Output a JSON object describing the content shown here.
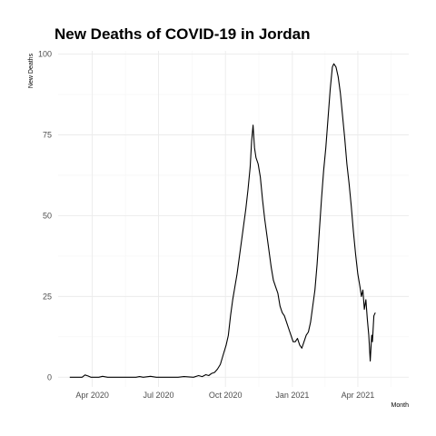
{
  "chart_data": {
    "type": "line",
    "title": "New Deaths of COVID-19 in Jordan",
    "xlabel": "Month",
    "ylabel": "New Deaths",
    "ylim": [
      -3,
      101
    ],
    "xlim": [
      "2020-02-14",
      "2021-06-10"
    ],
    "x_ticks": [
      "2020-04-01",
      "2020-07-01",
      "2020-10-01",
      "2021-01-01",
      "2021-04-01"
    ],
    "x_tick_labels": [
      "Apr 2020",
      "Jul 2020",
      "Oct 2020",
      "Jan 2021",
      "Apr 2021"
    ],
    "y_ticks": [
      0,
      25,
      50,
      75,
      100
    ],
    "y_tick_labels": [
      "0",
      "25",
      "50",
      "75",
      "100"
    ],
    "grid": true,
    "series": [
      {
        "color": "#000000",
        "points": [
          [
            "2020-03-01",
            0
          ],
          [
            "2020-03-10",
            0
          ],
          [
            "2020-03-18",
            0
          ],
          [
            "2020-03-22",
            0.7
          ],
          [
            "2020-03-26",
            0.4
          ],
          [
            "2020-03-30",
            0
          ],
          [
            "2020-04-10",
            0
          ],
          [
            "2020-04-15",
            0.3
          ],
          [
            "2020-04-22",
            0
          ],
          [
            "2020-05-31",
            0
          ],
          [
            "2020-06-05",
            0.2
          ],
          [
            "2020-06-10",
            0
          ],
          [
            "2020-06-20",
            0.3
          ],
          [
            "2020-06-28",
            0
          ],
          [
            "2020-07-15",
            0
          ],
          [
            "2020-07-28",
            0
          ],
          [
            "2020-08-05",
            0.2
          ],
          [
            "2020-08-18",
            0
          ],
          [
            "2020-08-25",
            0.5
          ],
          [
            "2020-08-30",
            0.2
          ],
          [
            "2020-09-04",
            0.8
          ],
          [
            "2020-09-08",
            0.5
          ],
          [
            "2020-09-12",
            1.2
          ],
          [
            "2020-09-16",
            1.5
          ],
          [
            "2020-09-20",
            2.5
          ],
          [
            "2020-09-24",
            4
          ],
          [
            "2020-09-28",
            7
          ],
          [
            "2020-10-02",
            10
          ],
          [
            "2020-10-05",
            13
          ],
          [
            "2020-10-08",
            19
          ],
          [
            "2020-10-11",
            24
          ],
          [
            "2020-10-14",
            28
          ],
          [
            "2020-10-17",
            32
          ],
          [
            "2020-10-20",
            37
          ],
          [
            "2020-10-23",
            42
          ],
          [
            "2020-10-26",
            47
          ],
          [
            "2020-10-29",
            52
          ],
          [
            "2020-11-01",
            58
          ],
          [
            "2020-11-04",
            65
          ],
          [
            "2020-11-06",
            73
          ],
          [
            "2020-11-08",
            78
          ],
          [
            "2020-11-10",
            71
          ],
          [
            "2020-11-12",
            68
          ],
          [
            "2020-11-15",
            66
          ],
          [
            "2020-11-18",
            62
          ],
          [
            "2020-11-21",
            55
          ],
          [
            "2020-11-24",
            49
          ],
          [
            "2020-11-27",
            44
          ],
          [
            "2020-11-30",
            39
          ],
          [
            "2020-12-03",
            34
          ],
          [
            "2020-12-06",
            30
          ],
          [
            "2020-12-09",
            28
          ],
          [
            "2020-12-12",
            26
          ],
          [
            "2020-12-15",
            22
          ],
          [
            "2020-12-18",
            20
          ],
          [
            "2020-12-21",
            19
          ],
          [
            "2020-12-24",
            17
          ],
          [
            "2020-12-27",
            15
          ],
          [
            "2020-12-30",
            13
          ],
          [
            "2021-01-02",
            11
          ],
          [
            "2021-01-05",
            11
          ],
          [
            "2021-01-08",
            12
          ],
          [
            "2021-01-11",
            10
          ],
          [
            "2021-01-14",
            9
          ],
          [
            "2021-01-17",
            11
          ],
          [
            "2021-01-20",
            13
          ],
          [
            "2021-01-23",
            14
          ],
          [
            "2021-01-26",
            17
          ],
          [
            "2021-01-29",
            22
          ],
          [
            "2021-02-01",
            27
          ],
          [
            "2021-02-04",
            35
          ],
          [
            "2021-02-07",
            45
          ],
          [
            "2021-02-10",
            55
          ],
          [
            "2021-02-13",
            64
          ],
          [
            "2021-02-16",
            71
          ],
          [
            "2021-02-19",
            80
          ],
          [
            "2021-02-22",
            89
          ],
          [
            "2021-02-25",
            96
          ],
          [
            "2021-02-27",
            97
          ],
          [
            "2021-03-02",
            96
          ],
          [
            "2021-03-05",
            93
          ],
          [
            "2021-03-08",
            88
          ],
          [
            "2021-03-11",
            81
          ],
          [
            "2021-03-14",
            74
          ],
          [
            "2021-03-17",
            66
          ],
          [
            "2021-03-20",
            60
          ],
          [
            "2021-03-23",
            53
          ],
          [
            "2021-03-26",
            45
          ],
          [
            "2021-03-29",
            38
          ],
          [
            "2021-04-01",
            32
          ],
          [
            "2021-04-04",
            28
          ],
          [
            "2021-04-06",
            25
          ],
          [
            "2021-04-08",
            27
          ],
          [
            "2021-04-10",
            21
          ],
          [
            "2021-04-12",
            24
          ],
          [
            "2021-04-14",
            18
          ],
          [
            "2021-04-16",
            13
          ],
          [
            "2021-04-18",
            5
          ],
          [
            "2021-04-20",
            13
          ],
          [
            "2021-04-21",
            11
          ],
          [
            "2021-04-23",
            19
          ],
          [
            "2021-04-25",
            20
          ]
        ]
      }
    ]
  }
}
